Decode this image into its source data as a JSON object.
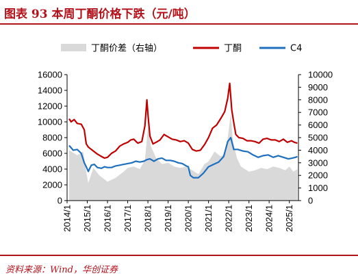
{
  "header": {
    "title": "图表 93   本周丁酮价格下跌（元/吨）"
  },
  "footer": {
    "source": "资料来源：Wind，华创证券"
  },
  "colors": {
    "brand": "#b3121b",
    "spread": "#d9d9d9",
    "butanone": "#c00000",
    "c4": "#1f6fbf"
  },
  "chart_data": {
    "type": "line",
    "title": "",
    "legend": [
      "丁酮价差（右轴）",
      "丁酮",
      "C4"
    ],
    "legend_placement": "top",
    "x_ticks": [
      "2014/1",
      "2015/1",
      "2016/1",
      "2017/1",
      "2018/1",
      "2019/1",
      "2020/1",
      "2021/1",
      "2022/1",
      "2023/1",
      "2024/1",
      "2025/1"
    ],
    "x_range": [
      2014.0,
      2025.45
    ],
    "y_left": {
      "ticks": [
        0,
        2000,
        4000,
        6000,
        8000,
        10000,
        12000,
        14000,
        16000
      ],
      "ylim": [
        0,
        16000
      ]
    },
    "y_right": {
      "ticks": [
        0,
        1000,
        2000,
        3000,
        4000,
        5000,
        6000,
        7000,
        8000,
        9000,
        10000
      ],
      "ylim": [
        0,
        10000
      ]
    },
    "grid": false,
    "series": [
      {
        "name": "丁酮价差（右轴）",
        "type": "area",
        "axis": "right",
        "color": "#d9d9d9",
        "x": [
          2014.1,
          2014.5,
          2014.8,
          2014.95,
          2015.05,
          2015.3,
          2015.6,
          2016.0,
          2016.4,
          2016.8,
          2017.0,
          2017.3,
          2017.6,
          2017.85,
          2018.0,
          2018.15,
          2018.4,
          2018.7,
          2019.0,
          2019.3,
          2019.6,
          2019.9,
          2020.2,
          2020.5,
          2020.8,
          2021.0,
          2021.3,
          2021.6,
          2021.85,
          2022.0,
          2022.1,
          2022.2,
          2022.4,
          2022.6,
          2022.8,
          2023.0,
          2023.3,
          2023.6,
          2023.9,
          2024.2,
          2024.5,
          2024.8,
          2025.0,
          2025.2,
          2025.4
        ],
        "values": [
          4000,
          3600,
          3900,
          2300,
          1400,
          2600,
          2000,
          1500,
          1800,
          2300,
          2600,
          2700,
          2500,
          3200,
          5800,
          4300,
          3400,
          2900,
          3000,
          2700,
          2600,
          2700,
          2400,
          2100,
          2900,
          3100,
          3900,
          3500,
          3800,
          5600,
          6900,
          4800,
          3400,
          2700,
          2500,
          2300,
          2400,
          2600,
          2500,
          2700,
          2600,
          2400,
          2700,
          2300,
          2500
        ]
      },
      {
        "name": "丁酮",
        "axis": "left",
        "color": "#c00000",
        "x": [
          2014.1,
          2014.2,
          2014.35,
          2014.5,
          2014.7,
          2014.85,
          2014.95,
          2015.05,
          2015.2,
          2015.35,
          2015.5,
          2015.7,
          2015.85,
          2016.0,
          2016.2,
          2016.4,
          2016.6,
          2016.8,
          2017.0,
          2017.15,
          2017.3,
          2017.5,
          2017.7,
          2017.85,
          2017.95,
          2018.0,
          2018.1,
          2018.25,
          2018.4,
          2018.6,
          2018.8,
          2019.0,
          2019.2,
          2019.4,
          2019.6,
          2019.8,
          2020.0,
          2020.2,
          2020.4,
          2020.6,
          2020.8,
          2021.0,
          2021.2,
          2021.4,
          2021.6,
          2021.8,
          2021.95,
          2022.05,
          2022.15,
          2022.25,
          2022.35,
          2022.5,
          2022.7,
          2022.9,
          2023.1,
          2023.3,
          2023.5,
          2023.7,
          2023.9,
          2024.1,
          2024.3,
          2024.5,
          2024.7,
          2024.9,
          2025.1,
          2025.25,
          2025.4
        ],
        "values": [
          10400,
          10000,
          10300,
          9800,
          9700,
          9000,
          7200,
          6800,
          6500,
          6200,
          5900,
          5600,
          5400,
          5500,
          6000,
          6300,
          6900,
          7200,
          7400,
          7700,
          7800,
          7300,
          7500,
          9500,
          12800,
          11000,
          8200,
          7200,
          7400,
          7700,
          8400,
          8100,
          7800,
          7700,
          7500,
          7600,
          7300,
          6500,
          6300,
          6400,
          7100,
          8000,
          9200,
          9600,
          10400,
          11300,
          13000,
          14900,
          11500,
          9900,
          8400,
          8000,
          7900,
          7600,
          7600,
          7500,
          7300,
          7800,
          7900,
          7700,
          7700,
          7500,
          7800,
          7400,
          7600,
          7400,
          7300
        ]
      },
      {
        "name": "C4",
        "axis": "left",
        "color": "#1f6fbf",
        "x": [
          2014.1,
          2014.3,
          2014.5,
          2014.7,
          2014.85,
          2014.95,
          2015.05,
          2015.2,
          2015.35,
          2015.5,
          2015.7,
          2015.85,
          2016.0,
          2016.2,
          2016.4,
          2016.6,
          2016.8,
          2017.0,
          2017.2,
          2017.4,
          2017.6,
          2017.8,
          2017.95,
          2018.1,
          2018.3,
          2018.5,
          2018.7,
          2018.9,
          2019.1,
          2019.3,
          2019.5,
          2019.7,
          2019.9,
          2020.0,
          2020.1,
          2020.25,
          2020.5,
          2020.75,
          2021.0,
          2021.25,
          2021.5,
          2021.75,
          2021.95,
          2022.1,
          2022.25,
          2022.45,
          2022.7,
          2022.95,
          2023.2,
          2023.45,
          2023.7,
          2023.95,
          2024.2,
          2024.45,
          2024.7,
          2024.95,
          2025.15,
          2025.3,
          2025.4
        ],
        "values": [
          7000,
          6400,
          6500,
          6000,
          4800,
          4300,
          3700,
          4500,
          4600,
          4200,
          4100,
          4300,
          4200,
          4200,
          4400,
          4500,
          4600,
          4700,
          4800,
          5000,
          4900,
          5000,
          5200,
          5300,
          5000,
          5300,
          5400,
          5100,
          5100,
          5000,
          4800,
          4700,
          4400,
          4300,
          3200,
          2900,
          2900,
          3500,
          4300,
          4600,
          4900,
          5600,
          7500,
          8000,
          6500,
          6500,
          6300,
          6200,
          5800,
          5500,
          5700,
          5800,
          5500,
          5700,
          5500,
          5300,
          5400,
          5500,
          5600
        ]
      }
    ]
  }
}
